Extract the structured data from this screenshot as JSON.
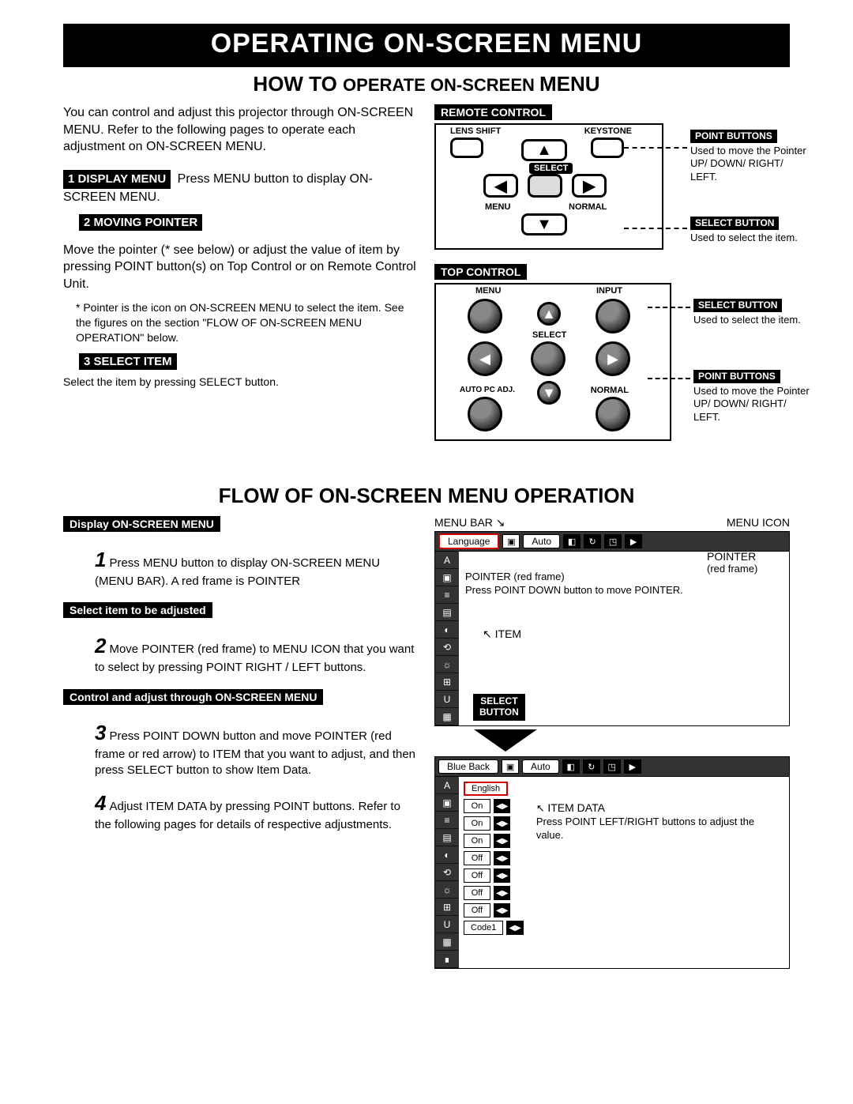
{
  "banner": "OPERATING ON-SCREEN MENU",
  "section1_title": "HOW TO OPERATE ON-SCREEN MENU",
  "intro": "You can control and adjust this projector through ON-SCREEN MENU. Refer to the following pages to operate each adjustment on ON-SCREEN MENU.",
  "step1_label": "1  DISPLAY MENU",
  "step1_text_a": " Press MENU button to display ON-",
  "step1_text_b": "SCREEN MENU.",
  "step2_label": "2  MOVING POINTER",
  "step2_text": "Move the pointer (* see below) or adjust the value of item by pressing POINT button(s) on Top Control or on Remote Control Unit.",
  "step2_footnote": "Pointer is the icon on ON-SCREEN MENU to select the item. See the figures on the section \"FLOW OF ON-SCREEN MENU OPERATION\" below.",
  "step3_label": "3  SELECT ITEM",
  "step3_text": "Select the item by pressing SELECT button.",
  "remote_label": "REMOTE CONTROL",
  "remote": {
    "lens_shift": "LENS SHIFT",
    "keystone": "KEYSTONE",
    "select": "SELECT",
    "menu": "MENU",
    "normal": "NORMAL"
  },
  "callout_point_title": "POINT BUTTONS",
  "callout_point_text": "Used to move the Pointer UP/ DOWN/ RIGHT/ LEFT.",
  "callout_select_title": "SELECT BUTTON",
  "callout_select_text": "Used to select the item.",
  "top_control_label": "TOP CONTROL",
  "top_control": {
    "menu": "MENU",
    "input": "INPUT",
    "select": "SELECT",
    "auto": "AUTO PC ADJ.",
    "normal": "NORMAL"
  },
  "tc_callout_select_title": "SELECT BUTTON",
  "tc_callout_select_text": "Used to select the item.",
  "tc_callout_point_title": "POINT BUTTONS",
  "tc_callout_point_text": "Used to move the Pointer UP/ DOWN/ RIGHT/ LEFT.",
  "section2_title": "FLOW OF ON-SCREEN MENU OPERATION",
  "flow1_label": "Display ON-SCREEN MENU",
  "flow1_num": "1",
  "flow1_text": "Press MENU button to display ON-SCREEN MENU (MENU BAR). A red frame is POINTER",
  "flow2_label": "Select item to be adjusted",
  "flow2_num": "2",
  "flow2_text": "Move POINTER (red frame) to MENU ICON that you want to select by pressing POINT RIGHT / LEFT buttons.",
  "flow3_label": "Control and adjust through ON-SCREEN MENU",
  "flow3_num": "3",
  "flow3_text": "Press POINT DOWN button and move POINTER (red frame or red arrow) to ITEM that you want to adjust, and then press SELECT button to show Item Data.",
  "flow4_num": "4",
  "flow4_text": "Adjust ITEM DATA by pressing POINT buttons. Refer to the following pages for details of respective adjustments.",
  "flow_right": {
    "menu_bar_label": "MENU BAR",
    "menu_icon_label": "MENU ICON",
    "bar1_left": "Language",
    "bar1_mid": "Auto",
    "pointer_label": "POINTER",
    "pointer_sub": "(red frame)",
    "pointer_note": "POINTER (red frame)\nPress POINT DOWN button to move POINTER.",
    "item_label": "ITEM",
    "select_button": "SELECT\nBUTTON",
    "bar2_left": "Blue Back",
    "bar2_mid": "Auto",
    "item_data_label": "ITEM DATA",
    "item_data_note": "Press POINT LEFT/RIGHT buttons to adjust the value.",
    "values": [
      "English",
      "On",
      "On",
      "On",
      "Off",
      "Off",
      "Off",
      "Off",
      "Code1"
    ]
  }
}
